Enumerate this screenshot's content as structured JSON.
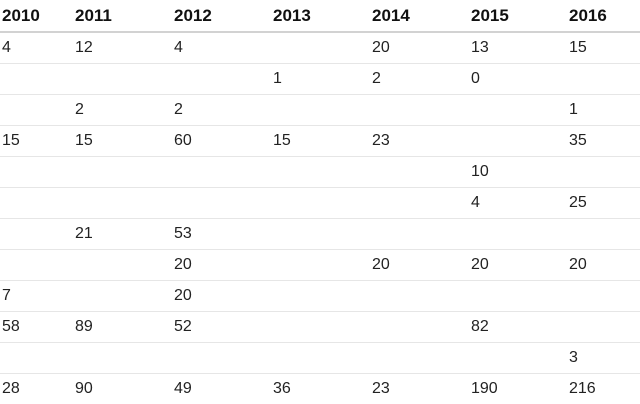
{
  "table": {
    "headers": [
      "2010",
      "2011",
      "2012",
      "2013",
      "2014",
      "2015",
      "2016"
    ],
    "rows": [
      [
        "4",
        "12",
        "4",
        "",
        "20",
        "13",
        "15"
      ],
      [
        "",
        "",
        "",
        "1",
        "2",
        "0",
        ""
      ],
      [
        "",
        "2",
        "2",
        "",
        "",
        "",
        "1"
      ],
      [
        "15",
        "15",
        "60",
        "15",
        "23",
        "",
        "35"
      ],
      [
        "",
        "",
        "",
        "",
        "",
        "10",
        ""
      ],
      [
        "",
        "",
        "",
        "",
        "",
        "4",
        "25"
      ],
      [
        "",
        "21",
        "53",
        "",
        "",
        "",
        ""
      ],
      [
        "",
        "",
        "20",
        "",
        "20",
        "20",
        "20"
      ],
      [
        "7",
        "",
        "20",
        "",
        "",
        "",
        ""
      ],
      [
        "58",
        "89",
        "52",
        "",
        "",
        "82",
        ""
      ],
      [
        "",
        "",
        "",
        "",
        "",
        "",
        "3"
      ],
      [
        "28",
        "90",
        "49",
        "36",
        "23",
        "190",
        "216"
      ]
    ]
  }
}
